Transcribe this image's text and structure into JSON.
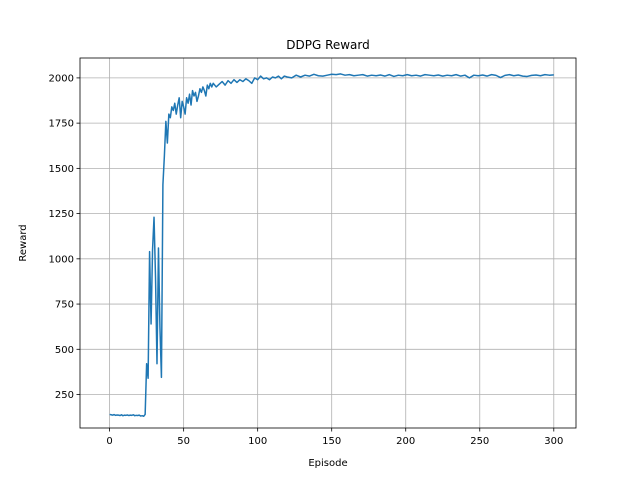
{
  "chart_data": {
    "type": "line",
    "title": "DDPG Reward",
    "xlabel": "Episode",
    "ylabel": "Reward",
    "xlim": [
      -20,
      315
    ],
    "ylim": [
      65,
      2110
    ],
    "xticks": [
      0,
      50,
      100,
      150,
      200,
      250,
      300
    ],
    "yticks": [
      250,
      500,
      750,
      1000,
      1250,
      1500,
      1750,
      2000
    ],
    "grid": true,
    "line_color": "#1f77b4",
    "series": [
      {
        "x": [
          0,
          1,
          2,
          3,
          4,
          5,
          6,
          7,
          8,
          9,
          10,
          11,
          12,
          13,
          14,
          15,
          16,
          17,
          18,
          19,
          20,
          21,
          22,
          23,
          24,
          25,
          26,
          27,
          28,
          29,
          30,
          31,
          32,
          33,
          34,
          35,
          36,
          37,
          38,
          39,
          40,
          41,
          42,
          43,
          44,
          45,
          46,
          47,
          48,
          49,
          50,
          51,
          52,
          53,
          54,
          55,
          56,
          57,
          58,
          59,
          60,
          61,
          62,
          63,
          64,
          65,
          66,
          67,
          68,
          69,
          70,
          72,
          74,
          76,
          78,
          80,
          82,
          84,
          86,
          88,
          90,
          92,
          94,
          96,
          98,
          100,
          102,
          104,
          106,
          108,
          110,
          112,
          114,
          116,
          118,
          120,
          123,
          126,
          129,
          132,
          135,
          138,
          141,
          144,
          147,
          150,
          153,
          156,
          159,
          162,
          165,
          168,
          171,
          174,
          177,
          180,
          183,
          186,
          189,
          192,
          195,
          198,
          201,
          204,
          207,
          210,
          213,
          216,
          219,
          222,
          225,
          228,
          231,
          234,
          237,
          240,
          243,
          246,
          249,
          252,
          255,
          258,
          261,
          264,
          267,
          270,
          273,
          276,
          279,
          282,
          285,
          288,
          291,
          294,
          297,
          300
        ],
        "y": [
          140,
          138,
          136,
          139,
          135,
          137,
          136,
          134,
          138,
          133,
          136,
          135,
          137,
          134,
          136,
          135,
          138,
          133,
          135,
          134,
          136,
          131,
          133,
          130,
          140,
          420,
          340,
          1040,
          640,
          1050,
          1230,
          900,
          420,
          1060,
          620,
          345,
          1410,
          1570,
          1760,
          1640,
          1800,
          1780,
          1840,
          1820,
          1860,
          1800,
          1850,
          1890,
          1780,
          1870,
          1840,
          1800,
          1890,
          1860,
          1910,
          1850,
          1930,
          1900,
          1920,
          1870,
          1900,
          1940,
          1920,
          1950,
          1930,
          1900,
          1960,
          1940,
          1970,
          1950,
          1970,
          1950,
          1965,
          1980,
          1960,
          1985,
          1970,
          1990,
          1975,
          1990,
          1980,
          1995,
          1985,
          1970,
          2000,
          1990,
          2010,
          1995,
          2000,
          1990,
          2005,
          2000,
          2010,
          1995,
          2010,
          2005,
          2000,
          2015,
          2005,
          2015,
          2010,
          2020,
          2012,
          2010,
          2015,
          2020,
          2018,
          2022,
          2015,
          2018,
          2012,
          2015,
          2018,
          2010,
          2015,
          2012,
          2016,
          2010,
          2018,
          2008,
          2015,
          2012,
          2018,
          2012,
          2015,
          2010,
          2018,
          2015,
          2012,
          2016,
          2010,
          2015,
          2012,
          2018,
          2010,
          2015,
          2000,
          2015,
          2012,
          2016,
          2010,
          2018,
          2014,
          2002,
          2014,
          2018,
          2012,
          2016,
          2010,
          2008,
          2014,
          2016,
          2012,
          2018,
          2015,
          2017
        ]
      }
    ]
  }
}
